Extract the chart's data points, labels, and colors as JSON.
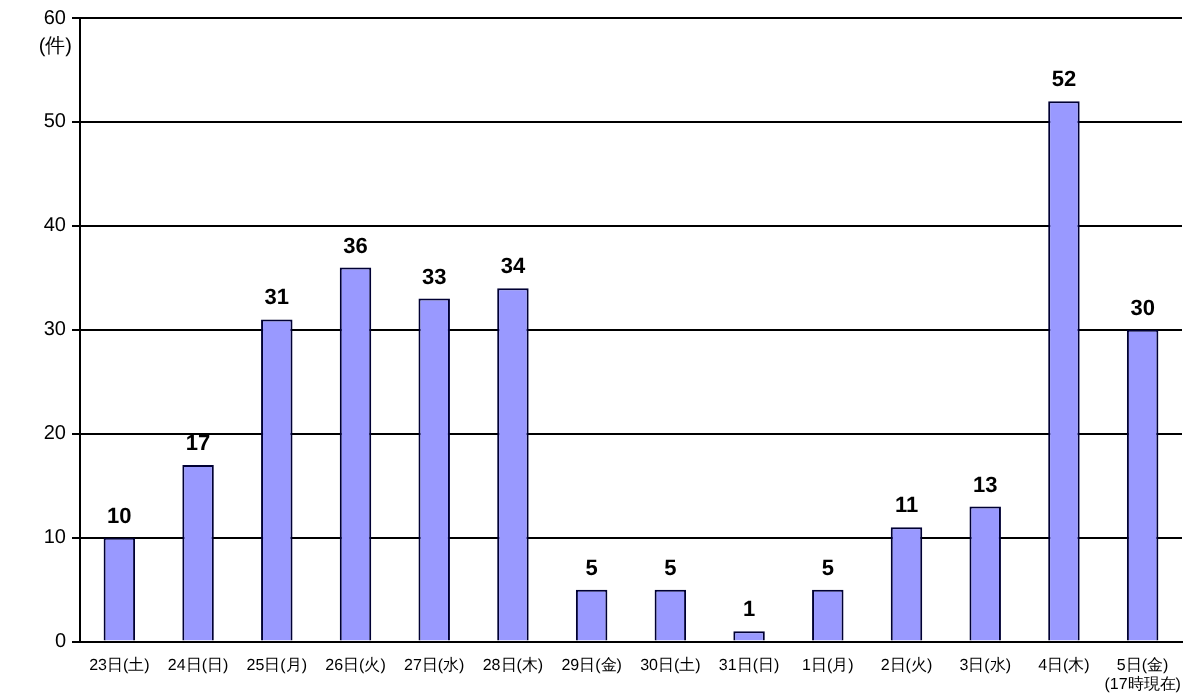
{
  "chart_data": {
    "type": "bar",
    "ylabel": "(件)",
    "categories": [
      "23日(土)",
      "24日(日)",
      "25日(月)",
      "26日(火)",
      "27日(水)",
      "28日(木)",
      "29日(金)",
      "30日(土)",
      "31日(日)",
      "1日(月)",
      "2日(火)",
      "3日(水)",
      "4日(木)",
      "5日(金)\n(17時現在)"
    ],
    "values": [
      10,
      17,
      31,
      36,
      33,
      34,
      5,
      5,
      1,
      5,
      11,
      13,
      52,
      30
    ],
    "color": "#9999ff",
    "ylim": [
      0,
      60
    ],
    "yticks": [
      0,
      10,
      20,
      30,
      40,
      50,
      60
    ],
    "grid": "y",
    "data_labels": true,
    "legend": false
  }
}
